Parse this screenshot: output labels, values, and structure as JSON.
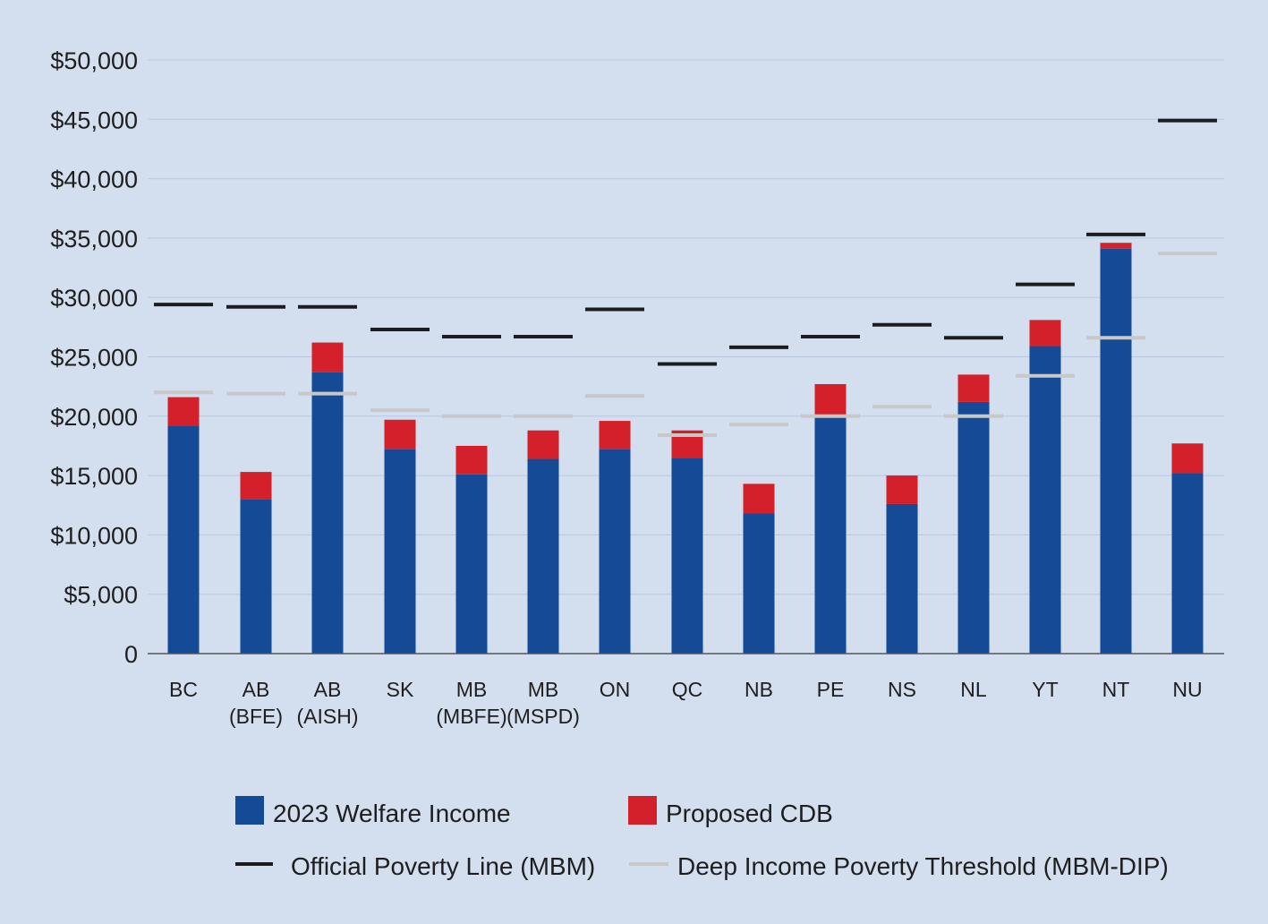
{
  "chart_data": {
    "type": "bar",
    "stacked": true,
    "title": "",
    "xlabel": "",
    "ylabel": "",
    "ylim": [
      0,
      50000
    ],
    "yticks": [
      0,
      5000,
      10000,
      15000,
      20000,
      25000,
      30000,
      35000,
      40000,
      45000,
      50000
    ],
    "ytick_labels": [
      "0",
      "$5,000",
      "$10,000",
      "$15,000",
      "$20,000",
      "$25,000",
      "$30,000",
      "$35,000",
      "$40,000",
      "$45,000",
      "$50,000"
    ],
    "grid": true,
    "categories": [
      [
        "BC"
      ],
      [
        "AB",
        "(BFE)"
      ],
      [
        "AB",
        "(AISH)"
      ],
      [
        "SK"
      ],
      [
        "MB",
        "(MBFE)"
      ],
      [
        "MB",
        "(MSPD)"
      ],
      [
        "ON"
      ],
      [
        "QC"
      ],
      [
        "NB"
      ],
      [
        "PE"
      ],
      [
        "NS"
      ],
      [
        "NL"
      ],
      [
        "YT"
      ],
      [
        "NT"
      ],
      [
        "NU"
      ]
    ],
    "series": [
      {
        "name": "2023 Welfare Income",
        "color": "#154a96",
        "values": [
          19200,
          13000,
          23700,
          17200,
          15100,
          16400,
          17200,
          16500,
          11800,
          20000,
          12600,
          21200,
          25900,
          34100,
          15200
        ]
      },
      {
        "name": "Proposed CDB",
        "color": "#d3202a",
        "values": [
          2400,
          2300,
          2500,
          2500,
          2400,
          2400,
          2400,
          2300,
          2500,
          2700,
          2400,
          2300,
          2200,
          500,
          2500
        ]
      }
    ],
    "lines": [
      {
        "name": "Official Poverty Line (MBM)",
        "color": "#1c1c1c",
        "values": [
          29400,
          29200,
          29200,
          27300,
          26700,
          26700,
          29000,
          24400,
          25800,
          26700,
          27700,
          26600,
          31100,
          35300,
          44900
        ]
      },
      {
        "name": "Deep Income Poverty Threshold (MBM-DIP)",
        "color": "#c8c8c8",
        "values": [
          22000,
          21900,
          21900,
          20500,
          20000,
          20000,
          21700,
          18400,
          19300,
          20000,
          20800,
          20000,
          23400,
          26600,
          33700
        ]
      }
    ],
    "legend_position": "bottom"
  }
}
